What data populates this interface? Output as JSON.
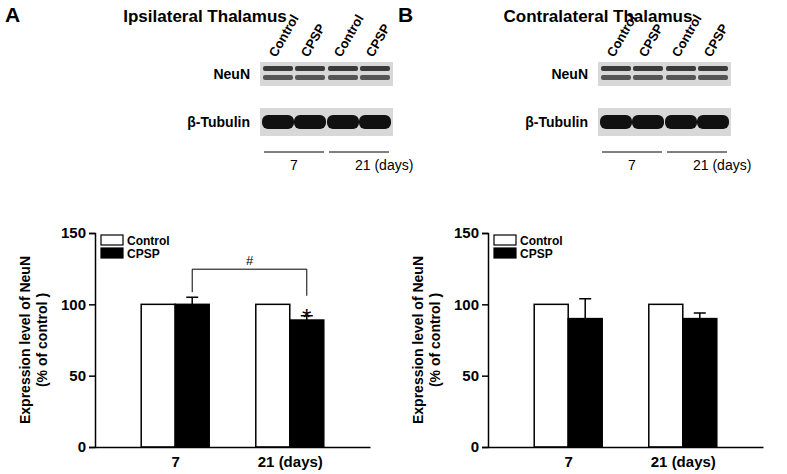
{
  "chart_data": [
    {
      "type": "bar",
      "panel": "A",
      "title": "Ipsilateral Thalamus",
      "blot": {
        "lanes": [
          "Control",
          "CPSP",
          "Control",
          "CPSP"
        ],
        "rows": [
          "NeuN",
          "β-Tubulin"
        ],
        "groups": [
          "7",
          "21 (days)"
        ]
      },
      "categories": [
        "7",
        "21 (days)"
      ],
      "series": [
        {
          "name": "Control",
          "color": "#ffffff",
          "values": [
            100,
            100
          ]
        },
        {
          "name": "CPSP",
          "color": "#000000",
          "values": [
            100,
            89
          ],
          "errors": [
            5,
            3
          ]
        }
      ],
      "y_label": [
        "Expression  level of NeuN",
        "(% of control )"
      ],
      "ylim": [
        0,
        150
      ],
      "yticks": [
        0,
        50,
        100,
        150
      ],
      "legend": "upper left",
      "annotations": [
        {
          "text": "#",
          "between": [
            "7",
            "21 (days)"
          ],
          "series": "CPSP"
        },
        {
          "text": "*",
          "category": "21 (days)",
          "series": "CPSP"
        }
      ]
    },
    {
      "type": "bar",
      "panel": "B",
      "title": "Contralateral Thalamus",
      "blot": {
        "lanes": [
          "Control",
          "CPSP",
          "Control",
          "CPSP"
        ],
        "rows": [
          "NeuN",
          "β-Tubulin"
        ],
        "groups": [
          "7",
          "21 (days)"
        ]
      },
      "categories": [
        "7",
        "21 (days)"
      ],
      "series": [
        {
          "name": "Control",
          "color": "#ffffff",
          "values": [
            100,
            100
          ]
        },
        {
          "name": "CPSP",
          "color": "#000000",
          "values": [
            90,
            90
          ],
          "errors": [
            14,
            4
          ]
        }
      ],
      "y_label": [
        "Expression  level of NeuN",
        "(% of control )"
      ],
      "ylim": [
        0,
        150
      ],
      "yticks": [
        0,
        50,
        100,
        150
      ],
      "legend": "upper left",
      "annotations": []
    }
  ]
}
